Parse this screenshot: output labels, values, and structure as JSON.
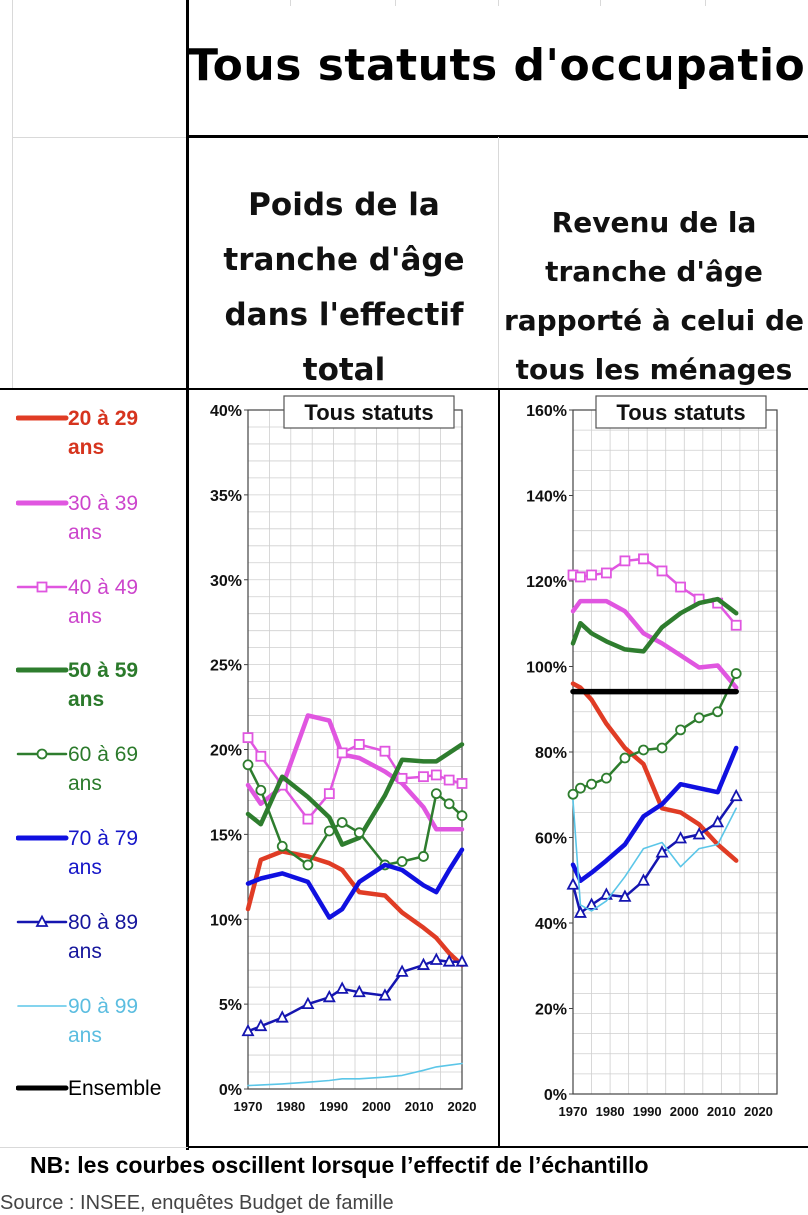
{
  "title": "Tous statuts d'occupation",
  "subtitles": {
    "left": [
      "Poids de la",
      "tranche d'âge",
      "dans l'effectif",
      "total"
    ],
    "right": [
      "Revenu de la",
      "tranche d'âge",
      "rapporté à celui de",
      "tous les ménages"
    ]
  },
  "legend": [
    {
      "label": "20 à 29\nans",
      "color": "#e03c25",
      "text_color": "#d6341e",
      "bold": true,
      "style": "thick",
      "marker": "none"
    },
    {
      "label": "30 à 39\nans",
      "color": "#e056e0",
      "text_color": "#cc45cc",
      "bold": false,
      "style": "thick",
      "marker": "none"
    },
    {
      "label": "40 à 49\nans",
      "color": "#e056e0",
      "text_color": "#cc45cc",
      "bold": false,
      "style": "thin",
      "marker": "square"
    },
    {
      "label": "50 à 59\nans",
      "color": "#2e7d2e",
      "text_color": "#2b7a2b",
      "bold": true,
      "style": "thick",
      "marker": "none"
    },
    {
      "label": "60 à 69\nans",
      "color": "#2e7d2e",
      "text_color": "#2b7a2b",
      "bold": false,
      "style": "thin",
      "marker": "circle"
    },
    {
      "label": "70 à 79\nans",
      "color": "#1010e0",
      "text_color": "#1616c8",
      "bold": false,
      "style": "thick",
      "marker": "none"
    },
    {
      "label": "80 à 89\nans",
      "color": "#1515b0",
      "text_color": "#15159c",
      "bold": false,
      "style": "thin",
      "marker": "triangle"
    },
    {
      "label": "90 à 99\nans",
      "color": "#5bc6e8",
      "text_color": "#5bbde0",
      "bold": false,
      "style": "hair",
      "marker": "none"
    },
    {
      "label": "Ensemble",
      "color": "#000000",
      "text_color": "#000000",
      "bold": false,
      "style": "thick",
      "marker": "none"
    }
  ],
  "footnote": "NB: les courbes oscillent lorsque l’effectif de l’échantillo",
  "footnote2": "Source : INSEE, enquêtes Budget de famille",
  "chart_data": [
    {
      "type": "line",
      "title": "Tous statuts",
      "xlabel": "",
      "ylabel": "",
      "xlim": [
        1970,
        2020
      ],
      "ylim": [
        0,
        40
      ],
      "y_ticks": [
        "0%",
        "5%",
        "10%",
        "15%",
        "20%",
        "25%",
        "30%",
        "35%",
        "40%"
      ],
      "x_ticks": [
        "1970",
        "1980",
        "1990",
        "2000",
        "2010",
        "2020"
      ],
      "grid": true,
      "series": [
        {
          "name": "20 à 29 ans",
          "x": [
            1970,
            1973,
            1978,
            1984,
            1989,
            1992,
            1996,
            2002,
            2006,
            2011,
            2014,
            2017,
            2020
          ],
          "y": [
            10.6,
            13.5,
            14.0,
            13.7,
            13.3,
            12.9,
            11.6,
            11.4,
            10.4,
            9.5,
            8.9,
            8.0,
            7.3
          ]
        },
        {
          "name": "30 à 39 ans",
          "x": [
            1970,
            1973,
            1978,
            1984,
            1989,
            1992,
            1996,
            2002,
            2006,
            2011,
            2014,
            2017,
            2020
          ],
          "y": [
            17.9,
            16.8,
            17.8,
            22.0,
            21.7,
            19.7,
            19.5,
            18.7,
            18.0,
            16.6,
            15.3,
            15.3,
            15.3
          ]
        },
        {
          "name": "40 à 49 ans",
          "x": [
            1970,
            1973,
            1978,
            1984,
            1989,
            1992,
            1996,
            2002,
            2006,
            2011,
            2014,
            2017,
            2020
          ],
          "y": [
            20.7,
            19.6,
            17.9,
            15.9,
            17.4,
            19.8,
            20.3,
            19.9,
            18.3,
            18.4,
            18.5,
            18.2,
            18.0
          ]
        },
        {
          "name": "50 à 59 ans",
          "x": [
            1970,
            1973,
            1978,
            1984,
            1989,
            1992,
            1996,
            2002,
            2006,
            2011,
            2014,
            2017,
            2020
          ],
          "y": [
            16.2,
            15.6,
            18.4,
            17.2,
            16.0,
            14.4,
            14.8,
            17.3,
            19.4,
            19.3,
            19.3,
            19.8,
            20.3
          ]
        },
        {
          "name": "60 à 69 ans",
          "x": [
            1970,
            1973,
            1978,
            1984,
            1989,
            1992,
            1996,
            2002,
            2006,
            2011,
            2014,
            2017,
            2020
          ],
          "y": [
            19.1,
            17.6,
            14.3,
            13.2,
            15.2,
            15.7,
            15.1,
            13.2,
            13.4,
            13.7,
            17.4,
            16.8,
            16.1
          ]
        },
        {
          "name": "70 à 79 ans",
          "x": [
            1970,
            1973,
            1978,
            1984,
            1989,
            1992,
            1996,
            2002,
            2006,
            2011,
            2014,
            2017,
            2020
          ],
          "y": [
            12.1,
            12.4,
            12.7,
            12.2,
            10.1,
            10.6,
            12.2,
            13.2,
            12.9,
            12.0,
            11.6,
            12.9,
            14.1
          ]
        },
        {
          "name": "80 à 89 ans",
          "x": [
            1970,
            1973,
            1978,
            1984,
            1989,
            1992,
            1996,
            2002,
            2006,
            2011,
            2014,
            2017,
            2020
          ],
          "y": [
            3.4,
            3.7,
            4.2,
            5.0,
            5.4,
            5.9,
            5.7,
            5.5,
            6.9,
            7.3,
            7.6,
            7.5,
            7.5
          ]
        },
        {
          "name": "90 à 99 ans",
          "x": [
            1970,
            1978,
            1984,
            1989,
            1992,
            1996,
            2002,
            2006,
            2011,
            2014,
            2017,
            2020
          ],
          "y": [
            0.2,
            0.3,
            0.4,
            0.5,
            0.6,
            0.6,
            0.7,
            0.8,
            1.1,
            1.3,
            1.4,
            1.5
          ]
        }
      ]
    },
    {
      "type": "line",
      "title": "Tous statuts",
      "xlabel": "",
      "ylabel": "",
      "xlim": [
        1970,
        2025
      ],
      "ylim": [
        0,
        170
      ],
      "y_ticks": [
        "0%",
        "20%",
        "40%",
        "60%",
        "80%",
        "100%",
        "120%",
        "140%",
        "160%"
      ],
      "x_ticks": [
        "1970",
        "1980",
        "1990",
        "2000",
        "2010",
        "2020"
      ],
      "grid": true,
      "series": [
        {
          "name": "20 à 29 ans",
          "x": [
            1970,
            1972,
            1975,
            1979,
            1984,
            1989,
            1994,
            1999,
            2004,
            2009,
            2014
          ],
          "y": [
            102,
            101,
            98,
            92,
            86,
            82,
            71,
            70,
            67,
            62,
            58
          ]
        },
        {
          "name": "30 à 39 ans",
          "x": [
            1970,
            1972,
            1975,
            1979,
            1984,
            1989,
            1994,
            1999,
            2004,
            2009,
            2014
          ],
          "y": [
            120,
            122.5,
            122.5,
            122.5,
            120,
            114.5,
            112,
            109,
            106,
            106.5,
            101
          ]
        },
        {
          "name": "40 à 49 ans",
          "x": [
            1970,
            1972,
            1975,
            1979,
            1984,
            1989,
            1994,
            1999,
            2004,
            2009,
            2014
          ],
          "y": [
            129,
            128.5,
            129,
            129.5,
            132.5,
            133,
            130,
            126,
            123,
            122,
            116.5
          ]
        },
        {
          "name": "50 à 59 ans",
          "x": [
            1970,
            1972,
            1975,
            1979,
            1984,
            1989,
            1994,
            1999,
            2004,
            2009,
            2014
          ],
          "y": [
            112,
            117,
            114.5,
            112.5,
            110.5,
            110,
            116,
            119.5,
            122,
            123,
            119.5
          ]
        },
        {
          "name": "60 à 69 ans",
          "x": [
            1970,
            1972,
            1975,
            1979,
            1984,
            1989,
            1994,
            1999,
            2004,
            2009,
            2014
          ],
          "y": [
            74.5,
            76,
            77,
            78.5,
            83.5,
            85.5,
            86,
            90.5,
            93.5,
            95,
            104.5
          ]
        },
        {
          "name": "70 à 79 ans",
          "x": [
            1970,
            1972,
            1975,
            1979,
            1984,
            1989,
            1994,
            1999,
            2004,
            2009,
            2014
          ],
          "y": [
            57,
            53,
            55,
            58,
            62,
            69,
            72,
            77,
            76,
            75,
            86
          ]
        },
        {
          "name": "80 à 89 ans",
          "x": [
            1970,
            1972,
            1975,
            1979,
            1984,
            1989,
            1994,
            1999,
            2004,
            2009,
            2014
          ],
          "y": [
            52,
            45,
            47,
            49.5,
            49,
            53,
            60,
            63.5,
            64.5,
            67.5,
            74
          ]
        },
        {
          "name": "90 à 99 ans",
          "x": [
            1970,
            1972,
            1975,
            1979,
            1984,
            1989,
            1994,
            1999,
            2004,
            2009,
            2014
          ],
          "y": [
            73,
            47,
            45.5,
            48,
            54,
            61,
            62.5,
            56.5,
            61,
            62,
            71
          ]
        },
        {
          "name": "Ensemble",
          "x": [
            1970,
            2014
          ],
          "y": [
            100,
            100
          ]
        }
      ]
    }
  ]
}
